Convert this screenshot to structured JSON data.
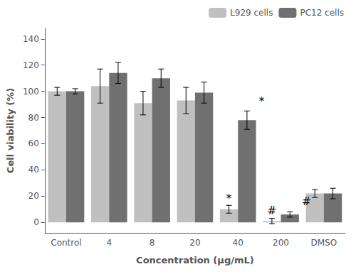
{
  "chart_data": {
    "type": "bar",
    "categories": [
      "Control",
      "4",
      "8",
      "20",
      "40",
      "200",
      "DMSO"
    ],
    "series": [
      {
        "name": "L929 cells",
        "color": "#c0c0c0",
        "values": [
          100,
          104,
          91,
          93,
          10,
          1,
          22
        ],
        "errors": [
          3,
          13,
          9,
          10,
          3,
          2,
          3
        ]
      },
      {
        "name": "PC12 cells",
        "color": "#707070",
        "values": [
          100,
          114,
          110,
          99,
          78,
          6,
          22
        ],
        "errors": [
          2,
          8,
          7,
          8,
          7,
          2,
          4
        ]
      }
    ],
    "xlabel": "Concentration (μg/mL)",
    "ylabel": "Cell viability (%)",
    "ylim": [
      -8,
      148
    ],
    "yticks": [
      0,
      20,
      40,
      60,
      80,
      100,
      120,
      140
    ],
    "grid": false,
    "legend": "upper right",
    "annotations": [
      {
        "text": "*",
        "series": "L929 cells",
        "category": "40",
        "y": 14
      },
      {
        "text": "#",
        "series": "L929 cells",
        "category": "200",
        "y": 5
      },
      {
        "text": "*",
        "series": "PC12 cells",
        "category": "40",
        "y": 88
      },
      {
        "text": "#",
        "series": "PC12 cells",
        "category": "200",
        "y": 12
      }
    ]
  }
}
